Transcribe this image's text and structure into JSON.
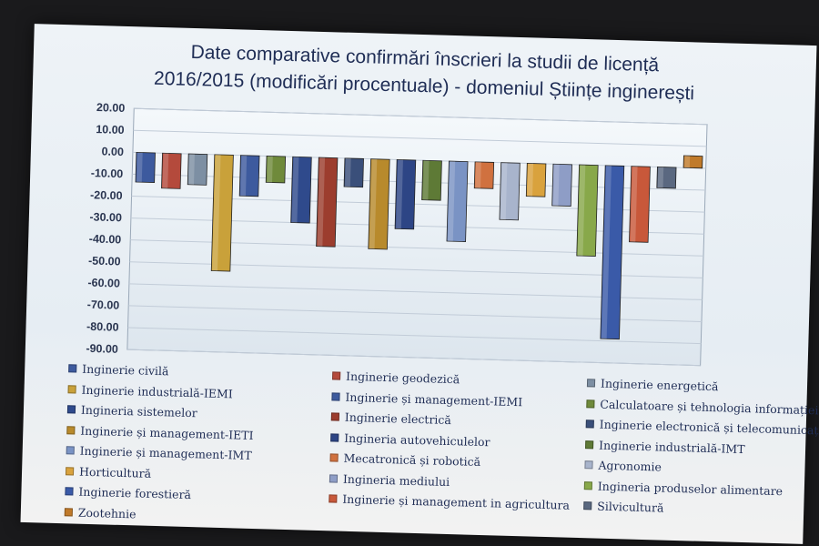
{
  "chart_data": {
    "type": "bar",
    "title_lines": [
      "Date comparative confirmări înscrieri la studii de licență",
      "2016/2015 (modificări procentuale) - domeniul Științe inginerești"
    ],
    "ylim": [
      -90,
      20
    ],
    "yticks": [
      "20.00",
      "10.00",
      "0.00",
      "-10.00",
      "-20.00",
      "-30.00",
      "-40.00",
      "-50.00",
      "-60.00",
      "-70.00",
      "-80.00",
      "-90.00"
    ],
    "categories": [
      "Inginerie civilă",
      "Inginerie geodezică",
      "Inginerie energetică",
      "Inginerie industrială-IEMI",
      "Inginerie și management-IEMI",
      "Calculatoare și tehnologia informației",
      "Ingineria sistemelor",
      "Inginerie electrică",
      "Inginerie electronică și telecomunicații",
      "Inginerie și management-IETI",
      "Ingineria autovehiculelor",
      "Inginerie industrială-IMT",
      "Inginerie și management-IMT",
      "Mecatronică și robotică",
      "Agronomie",
      "Horticultură",
      "Ingineria mediului",
      "Ingineria produselor alimentare",
      "Inginerie forestieră",
      "Inginerie și management in agricultura",
      "Silvicultură",
      "Zootehnie"
    ],
    "values": [
      -13.5,
      -16,
      -14,
      -53,
      -18.5,
      -12,
      -30,
      -40.5,
      -13,
      -41,
      -31.5,
      -18,
      -36.5,
      -12,
      -26,
      -15,
      -19,
      -41.5,
      -79,
      -34.5,
      -9.5,
      5.5
    ],
    "colors": [
      "#3d5a9e",
      "#b44a3c",
      "#7d8fa3",
      "#c9a13a",
      "#3d5a9e",
      "#6f8a3b",
      "#2f4a8c",
      "#9c3d2e",
      "#3a4f7a",
      "#b88a2c",
      "#2d4585",
      "#5e7a36",
      "#7a93c4",
      "#d0713f",
      "#a8b4cc",
      "#d9a23d",
      "#8e9dc6",
      "#88a84a",
      "#3a5aa8",
      "#c8583a",
      "#5a6880",
      "#c07a2a"
    ]
  }
}
